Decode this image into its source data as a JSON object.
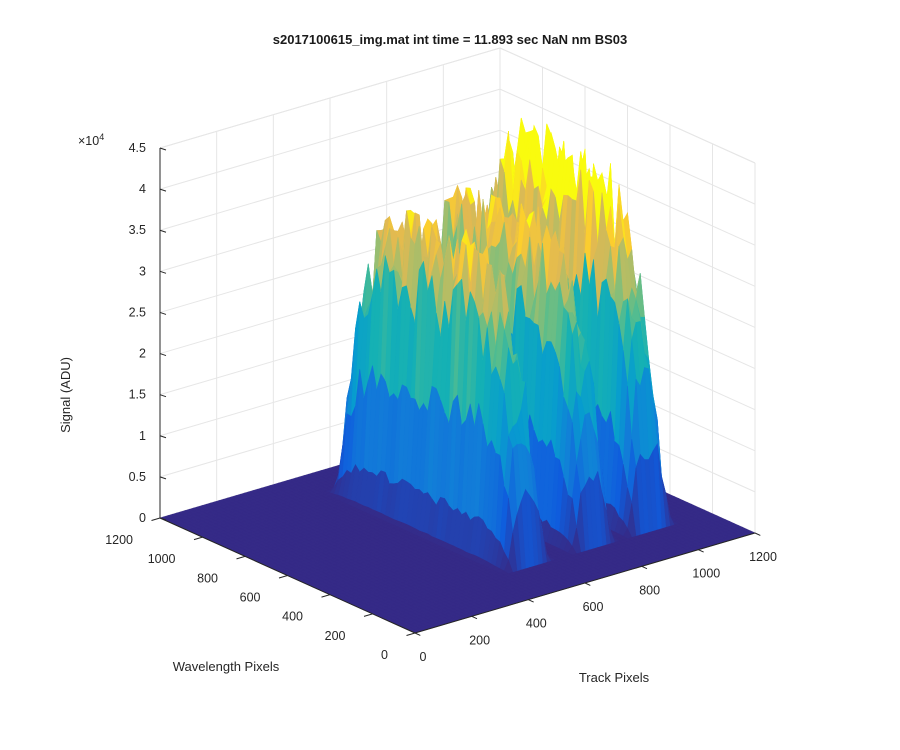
{
  "chart_data": {
    "type": "surface",
    "title": "s2017100615_img.mat int time = 11.893 sec  NaN nm BS03",
    "xlabel": "Track Pixels",
    "ylabel": "Wavelength Pixels",
    "zlabel": "Signal (ADU)",
    "z_multiplier": "×10",
    "z_exponent": "4",
    "xlim": [
      0,
      1200
    ],
    "ylim": [
      0,
      1200
    ],
    "zlim": [
      0,
      45000
    ],
    "x_ticks": [
      "0",
      "200",
      "400",
      "600",
      "800",
      "1000",
      "1200"
    ],
    "y_ticks": [
      "0",
      "200",
      "400",
      "600",
      "800",
      "1000",
      "1200"
    ],
    "z_ticks": [
      "0",
      "0.5",
      "1",
      "1.5",
      "2",
      "2.5",
      "3",
      "3.5",
      "4",
      "4.5"
    ],
    "colormap": "parula",
    "grid": true,
    "peaks": [
      {
        "x": 560,
        "y_range": [
          200,
          1050
        ],
        "z_max": 33000
      },
      {
        "x": 790,
        "y_range": [
          200,
          1050
        ],
        "z_max": 33500
      },
      {
        "x": 990,
        "y_range": [
          200,
          1050
        ],
        "z_max": 38000
      }
    ],
    "baseline": 0
  }
}
